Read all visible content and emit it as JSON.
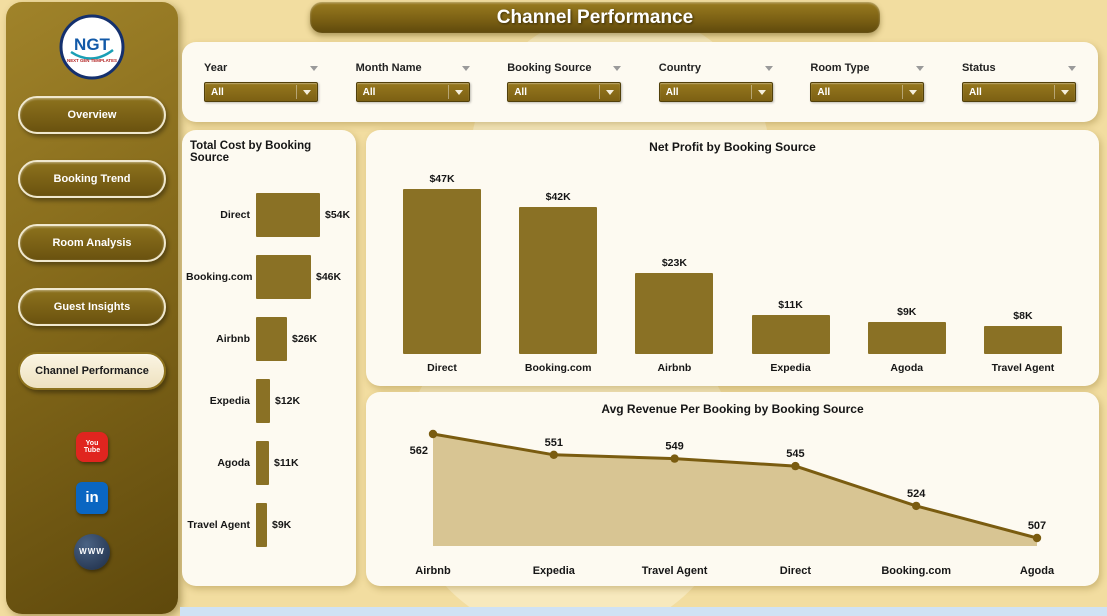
{
  "header": {
    "title": "Channel Performance"
  },
  "sidebar": {
    "logo": {
      "text": "NGT",
      "subtext": "NEXT GEN TEMPLATES"
    },
    "items": [
      {
        "label": "Overview",
        "active": false
      },
      {
        "label": "Booking Trend",
        "active": false
      },
      {
        "label": "Room Analysis",
        "active": false
      },
      {
        "label": "Guest Insights",
        "active": false
      },
      {
        "label": "Channel Performance",
        "active": true
      }
    ],
    "social": [
      {
        "name": "youtube",
        "lines": [
          "You",
          "Tube"
        ]
      },
      {
        "name": "linkedin",
        "lines": [
          "in"
        ]
      },
      {
        "name": "web",
        "lines": [
          "WWW"
        ]
      }
    ]
  },
  "filters": [
    {
      "label": "Year",
      "value": "All"
    },
    {
      "label": "Month Name",
      "value": "All"
    },
    {
      "label": "Booking Source",
      "value": "All"
    },
    {
      "label": "Country",
      "value": "All"
    },
    {
      "label": "Room Type",
      "value": "All"
    },
    {
      "label": "Status",
      "value": "All"
    }
  ],
  "chart_data": [
    {
      "id": "cost",
      "type": "bar",
      "orientation": "horizontal",
      "title": "Total Cost by Booking Source",
      "categories": [
        "Direct",
        "Booking.com",
        "Airbnb",
        "Expedia",
        "Agoda",
        "Travel Agent"
      ],
      "values": [
        54,
        46,
        26,
        12,
        11,
        9
      ],
      "labels": [
        "$54K",
        "$46K",
        "$26K",
        "$12K",
        "$11K",
        "$9K"
      ]
    },
    {
      "id": "profit",
      "type": "bar",
      "orientation": "vertical",
      "title": "Net Profit by Booking Source",
      "categories": [
        "Direct",
        "Booking.com",
        "Airbnb",
        "Expedia",
        "Agoda",
        "Travel Agent"
      ],
      "values": [
        47,
        42,
        23,
        11,
        9,
        8
      ],
      "labels": [
        "$47K",
        "$42K",
        "$23K",
        "$11K",
        "$9K",
        "$8K"
      ]
    },
    {
      "id": "revenue",
      "type": "area",
      "title": "Avg Revenue Per Booking by Booking Source",
      "categories": [
        "Airbnb",
        "Expedia",
        "Travel Agent",
        "Direct",
        "Booking.com",
        "Agoda"
      ],
      "values": [
        562,
        551,
        549,
        545,
        524,
        507
      ]
    }
  ],
  "colors": {
    "bar": "#8a7125",
    "line": "#7a5c10",
    "area_fill": "#d8c593",
    "background": "#f2dda0",
    "sidebar_dark": "#6b520f",
    "card": "#fdfaf1",
    "youtube_red": "#e0251f",
    "linkedin_blue": "#0a66c2"
  }
}
